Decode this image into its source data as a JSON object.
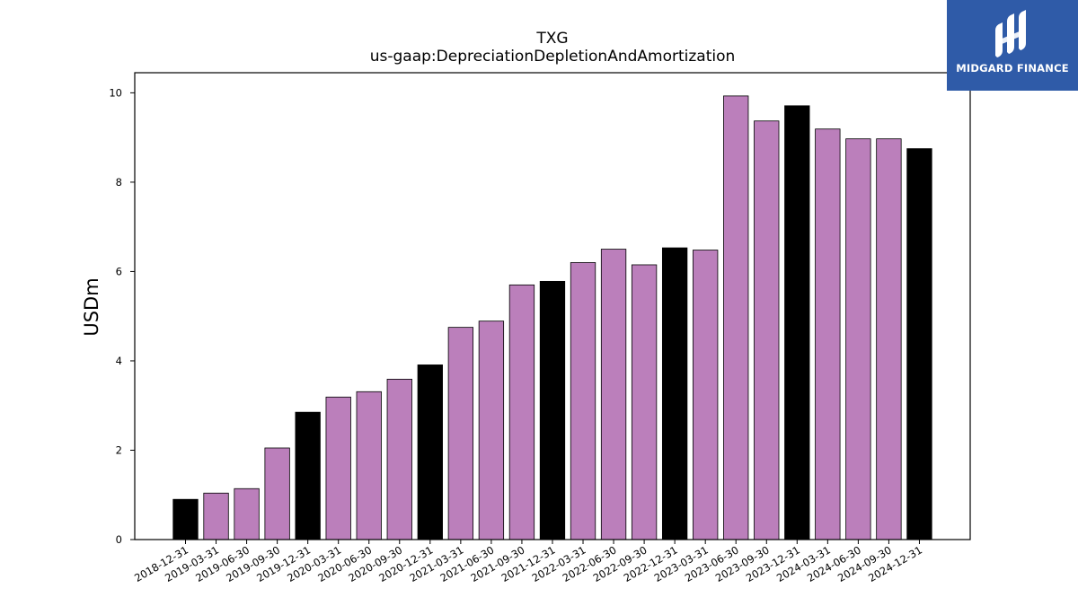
{
  "chart_data": {
    "type": "bar",
    "title": "TXG",
    "subtitle": "us-gaap:DepreciationDepletionAndAmortization",
    "xlabel": "",
    "ylabel": "USDm",
    "ylim": [
      0,
      10.45
    ],
    "yticks": [
      0,
      2,
      4,
      6,
      8,
      10
    ],
    "grid": false,
    "categories": [
      "2018-12-31",
      "2019-03-31",
      "2019-06-30",
      "2019-09-30",
      "2019-12-31",
      "2020-03-31",
      "2020-06-30",
      "2020-09-30",
      "2020-12-31",
      "2021-03-31",
      "2021-06-30",
      "2021-09-30",
      "2021-12-31",
      "2022-03-31",
      "2022-06-30",
      "2022-09-30",
      "2022-12-31",
      "2023-03-31",
      "2023-06-30",
      "2023-09-30",
      "2023-12-31",
      "2024-03-31",
      "2024-06-30",
      "2024-09-30",
      "2024-12-31"
    ],
    "values": [
      0.9,
      1.04,
      1.14,
      2.05,
      2.85,
      3.19,
      3.31,
      3.59,
      3.91,
      4.75,
      4.89,
      5.7,
      5.78,
      6.2,
      6.5,
      6.15,
      6.53,
      6.48,
      9.93,
      9.37,
      9.71,
      9.19,
      8.97,
      8.97,
      8.75
    ],
    "fiscal_year_end_bars": [
      "2018-12-31",
      "2019-12-31",
      "2020-12-31",
      "2021-12-31",
      "2022-12-31",
      "2023-12-31",
      "2024-12-31"
    ],
    "colors": {
      "quarter": "#bb7fbb",
      "year_end": "#000000",
      "edge": "#000000"
    }
  },
  "logo": {
    "text": "MIDGARD FINANCE",
    "background": "#2f5ba8"
  }
}
